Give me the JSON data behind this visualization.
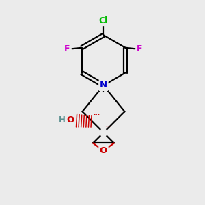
{
  "bg_color": "#ebebeb",
  "atom_colors": {
    "C": "#000000",
    "N": "#0000cc",
    "O": "#cc0000",
    "F": "#cc00cc",
    "Cl": "#00bb00",
    "H": "#5a9090"
  },
  "bond_color": "#000000",
  "bond_width": 1.6,
  "figsize": [
    3.0,
    3.0
  ],
  "dpi": 100
}
